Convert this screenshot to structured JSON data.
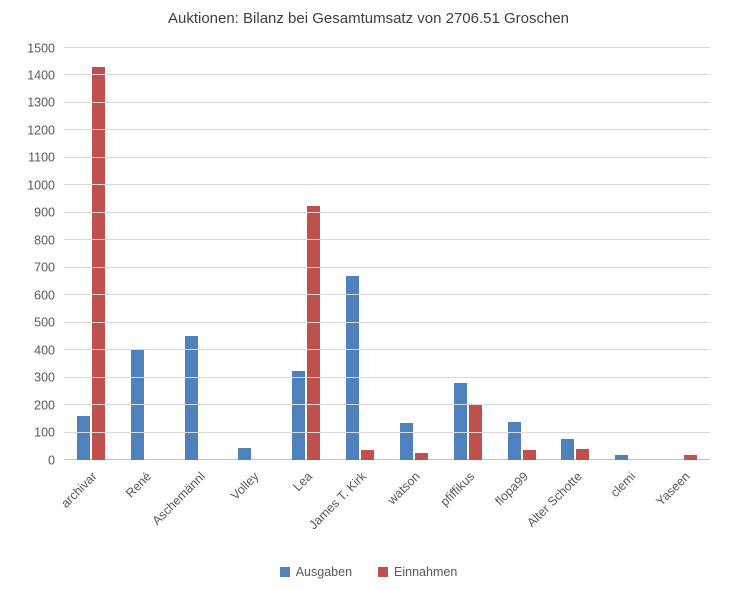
{
  "title": "Auktionen: Bilanz bei Gesamtumsatz von 2706.51 Groschen",
  "chart_data": {
    "type": "bar",
    "title": "Auktionen: Bilanz bei Gesamtumsatz von 2706.51 Groschen",
    "categories": [
      "archivar",
      "René",
      "Aschemännl",
      "Volley",
      "Lea",
      "James T. Kirk",
      "watson",
      "pfiffikus",
      "flopa99",
      "Alter Schotte",
      "clemi",
      "Yaseen"
    ],
    "series": [
      {
        "name": "Ausgaben",
        "color": "#4f81bd",
        "values": [
          160,
          400,
          450,
          45,
          325,
          670,
          135,
          280,
          140,
          78,
          20,
          0
        ]
      },
      {
        "name": "Einnahmen",
        "color": "#c0504d",
        "values": [
          1430,
          0,
          0,
          0,
          925,
          35,
          25,
          200,
          35,
          40,
          0,
          20
        ]
      }
    ],
    "xlabel": "",
    "ylabel": "",
    "ylim": [
      0,
      1500
    ],
    "ytick_step": 100,
    "grid": true,
    "legend_position": "bottom"
  },
  "colors": {
    "grid": "#d9d9d9",
    "axis": "#bfbfbf",
    "tick_text": "#595959",
    "title_text": "#404040"
  }
}
